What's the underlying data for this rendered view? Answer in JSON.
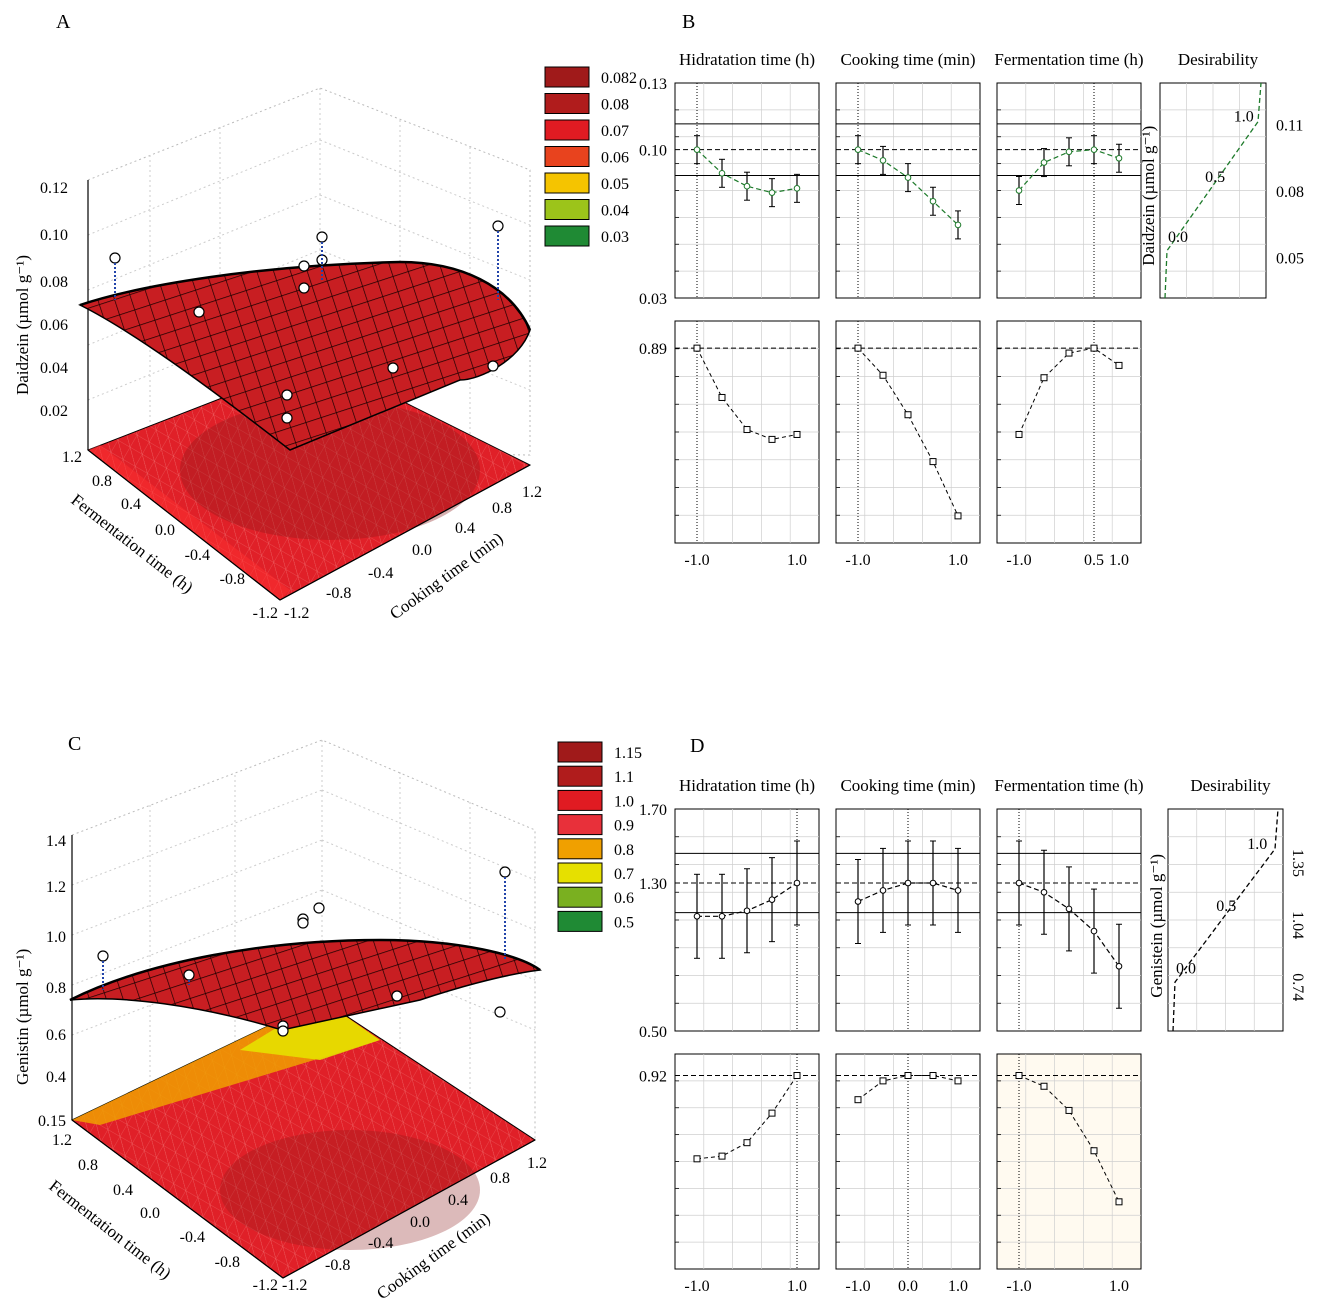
{
  "panels": [
    {
      "letter": "A",
      "type": "surface3d",
      "zlabel": "Daidzein (µmol g⁻¹)",
      "zticks": [
        "0.12",
        "0.10",
        "0.08",
        "0.06",
        "0.04",
        "0.02"
      ],
      "ylabel": "Fermentation time (h)",
      "yticks": [
        "1.2",
        "0.8",
        "0.4",
        "0.0",
        "-0.4",
        "-0.8",
        "-1.2"
      ],
      "xlabel": "Cooking time (min)",
      "xticks": [
        "-1.2",
        "-0.8",
        "-0.4",
        "0.0",
        "0.4",
        "0.8",
        "1.2"
      ],
      "legend": [
        {
          "label": "0.082",
          "color": "#a01a1a"
        },
        {
          "label": "0.08",
          "color": "#b01c1c"
        },
        {
          "label": "0.07",
          "color": "#e01b22"
        },
        {
          "label": "0.06",
          "color": "#e8431e"
        },
        {
          "label": "0.05",
          "color": "#f5c400"
        },
        {
          "label": "0.04",
          "color": "#9cc41a"
        },
        {
          "label": "0.03",
          "color": "#1f8a34"
        }
      ]
    },
    {
      "letter": "C",
      "type": "surface3d",
      "zlabel": "Genistin (µmol g⁻¹)",
      "zticks": [
        "1.4",
        "1.2",
        "1.0",
        "0.8",
        "0.6",
        "0.4",
        "0.15"
      ],
      "ylabel": "Fermentation time (h)",
      "yticks": [
        "1.2",
        "0.8",
        "0.4",
        "0.0",
        "-0.4",
        "-0.8",
        "-1.2"
      ],
      "xlabel": "Cooking time (min)",
      "xticks": [
        "-1.2",
        "-0.8",
        "-0.4",
        "0.0",
        "0.4",
        "0.8",
        "1.2"
      ],
      "legend": [
        {
          "label": "1.15",
          "color": "#a01a1a"
        },
        {
          "label": "1.1",
          "color": "#b01c1c"
        },
        {
          "label": "1.0",
          "color": "#e01b22"
        },
        {
          "label": "0.9",
          "color": "#e8303a"
        },
        {
          "label": "0.8",
          "color": "#f0a000"
        },
        {
          "label": "0.7",
          "color": "#e6e000"
        },
        {
          "label": "0.6",
          "color": "#7ab020"
        },
        {
          "label": "0.5",
          "color": "#1f8a34"
        }
      ]
    }
  ],
  "profiles": [
    {
      "letter": "B",
      "titles": [
        "Hidratation time (h)",
        "Cooking time (min)",
        "Fermentation time (h)",
        "Desirability"
      ],
      "yticks_top": [
        "0.13",
        "0.10",
        "0.03"
      ],
      "yticks_bottom": [
        "0.89"
      ],
      "xticks": [
        [
          "-1.0",
          "1.0"
        ],
        [
          "-1.0",
          "1.0"
        ],
        [
          "-1.0",
          "0.5",
          "1.0"
        ]
      ],
      "desir_ylabel": "Daidzein (µmol g⁻¹)",
      "desir_ticks_inner": [
        "1.0",
        "0.5",
        "0.0"
      ],
      "desir_ticks_outer": [
        "0.11",
        "0.08",
        "0.05"
      ]
    },
    {
      "letter": "D",
      "titles": [
        "Hidratation time (h)",
        "Cooking time (min)",
        "Fermentation time (h)",
        "Desirability"
      ],
      "yticks_top": [
        "1.70",
        "1.30",
        "0.50"
      ],
      "yticks_bottom": [
        "0.92"
      ],
      "xticks": [
        [
          "-1.0",
          "1.0"
        ],
        [
          "-1.0",
          "0.0",
          "1.0"
        ],
        [
          "-1.0",
          "1.0"
        ]
      ],
      "desir_ylabel": "Genistein (µmol g⁻¹)",
      "desir_ticks_inner": [
        "1.0",
        "0.5",
        "0.0"
      ],
      "desir_ticks_outer": [
        "1.35",
        "1.04",
        "0.74"
      ]
    }
  ],
  "chart_data": [
    {
      "type": "surface3d",
      "panel": "A",
      "x_name": "Cooking time (min)",
      "y_name": "Fermentation time (h)",
      "z_name": "Daidzein (µmol g⁻¹)",
      "xlim": [
        -1.2,
        1.2
      ],
      "ylim": [
        -1.2,
        1.2
      ],
      "zlim": [
        0,
        0.12
      ],
      "legend_levels": [
        0.082,
        0.08,
        0.07,
        0.06,
        0.05,
        0.04,
        0.03
      ]
    },
    {
      "type": "line",
      "panel": "B",
      "series": [
        {
          "factor": "Hidratation time (h)",
          "x": [
            -1.0,
            -0.5,
            0.0,
            0.5,
            1.0
          ],
          "y": [
            0.099,
            0.088,
            0.082,
            0.079,
            0.081
          ]
        },
        {
          "factor": "Cooking time (min)",
          "x": [
            -1.0,
            -0.5,
            0.0,
            0.5,
            1.0
          ],
          "y": [
            0.099,
            0.094,
            0.086,
            0.075,
            0.064
          ]
        },
        {
          "factor": "Fermentation time (h)",
          "x": [
            -1.0,
            -0.5,
            0.0,
            0.5,
            1.0
          ],
          "y": [
            0.08,
            0.093,
            0.098,
            0.099,
            0.095
          ]
        }
      ],
      "desirability": [
        {
          "factor": "Hidratation time (h)",
          "x": [
            -1.0,
            -0.5,
            0.0,
            0.5,
            1.0
          ],
          "y": [
            0.89,
            0.69,
            0.56,
            0.52,
            0.54
          ]
        },
        {
          "factor": "Cooking time (min)",
          "x": [
            -1.0,
            -0.5,
            0.0,
            0.5,
            1.0
          ],
          "y": [
            0.89,
            0.78,
            0.62,
            0.43,
            0.21
          ]
        },
        {
          "factor": "Fermentation time (h)",
          "x": [
            -1.0,
            -0.5,
            0.0,
            0.5,
            1.0
          ],
          "y": [
            0.54,
            0.77,
            0.87,
            0.89,
            0.82
          ]
        }
      ],
      "ylim": [
        0.03,
        0.13
      ]
    },
    {
      "type": "surface3d",
      "panel": "C",
      "x_name": "Cooking time (min)",
      "y_name": "Fermentation time (h)",
      "z_name": "Genistin (µmol g⁻¹)",
      "xlim": [
        -1.2,
        1.2
      ],
      "ylim": [
        -1.2,
        1.2
      ],
      "zlim": [
        0.15,
        1.4
      ],
      "legend_levels": [
        1.15,
        1.1,
        1.0,
        0.9,
        0.8,
        0.7,
        0.6,
        0.5
      ]
    },
    {
      "type": "line",
      "panel": "D",
      "series": [
        {
          "factor": "Hidratation time (h)",
          "x": [
            -1.0,
            -0.5,
            0.0,
            0.5,
            1.0
          ],
          "y": [
            1.12,
            1.12,
            1.15,
            1.21,
            1.3
          ]
        },
        {
          "factor": "Cooking time (min)",
          "x": [
            -1.0,
            -0.5,
            0.0,
            0.5,
            1.0
          ],
          "y": [
            1.2,
            1.26,
            1.3,
            1.3,
            1.26
          ]
        },
        {
          "factor": "Fermentation time (h)",
          "x": [
            -1.0,
            -0.5,
            0.0,
            0.5,
            1.0
          ],
          "y": [
            1.3,
            1.25,
            1.16,
            1.04,
            0.85
          ]
        }
      ],
      "desirability": [
        {
          "factor": "Hidratation time (h)",
          "x": [
            -1.0,
            -0.5,
            0.0,
            0.5,
            1.0
          ],
          "y": [
            0.61,
            0.62,
            0.67,
            0.78,
            0.92
          ]
        },
        {
          "factor": "Cooking time (min)",
          "x": [
            -1.0,
            -0.5,
            0.0,
            0.5,
            1.0
          ],
          "y": [
            0.83,
            0.9,
            0.92,
            0.92,
            0.9
          ]
        },
        {
          "factor": "Fermentation time (h)",
          "x": [
            -1.0,
            -0.5,
            0.0,
            0.5,
            1.0
          ],
          "y": [
            0.92,
            0.88,
            0.79,
            0.64,
            0.45
          ]
        }
      ],
      "ylim": [
        0.5,
        1.7
      ]
    }
  ]
}
